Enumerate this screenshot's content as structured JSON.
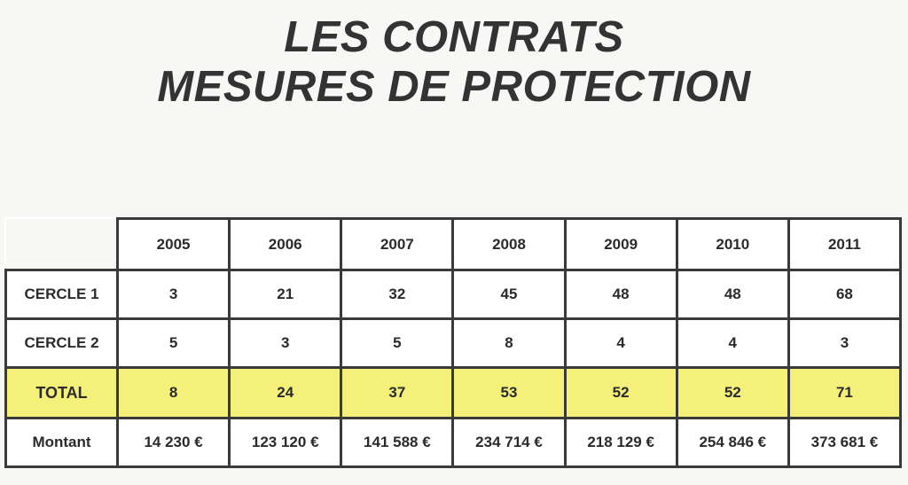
{
  "title": {
    "line1": "LES CONTRATS",
    "line2": "MESURES DE PROTECTION"
  },
  "table": {
    "years": [
      "2005",
      "2006",
      "2007",
      "2008",
      "2009",
      "2010",
      "2011"
    ],
    "rows": {
      "cercle1": {
        "label": "CERCLE 1",
        "values": [
          "3",
          "21",
          "32",
          "45",
          "48",
          "48",
          "68"
        ]
      },
      "cercle2": {
        "label": "CERCLE 2",
        "values": [
          "5",
          "3",
          "5",
          "8",
          "4",
          "4",
          "3"
        ]
      },
      "total": {
        "label": "TOTAL",
        "values": [
          "8",
          "24",
          "37",
          "53",
          "52",
          "52",
          "71"
        ]
      },
      "montant": {
        "label": "Montant",
        "values": [
          "14 230 €",
          "123 120 €",
          "141 588 €",
          "234 714 €",
          "218 129 €",
          "254 846 €",
          "373 681 €"
        ]
      }
    }
  },
  "colors": {
    "total_highlight": "#f5f07a",
    "border": "#3a3a3a",
    "text": "#2b2b2b"
  }
}
